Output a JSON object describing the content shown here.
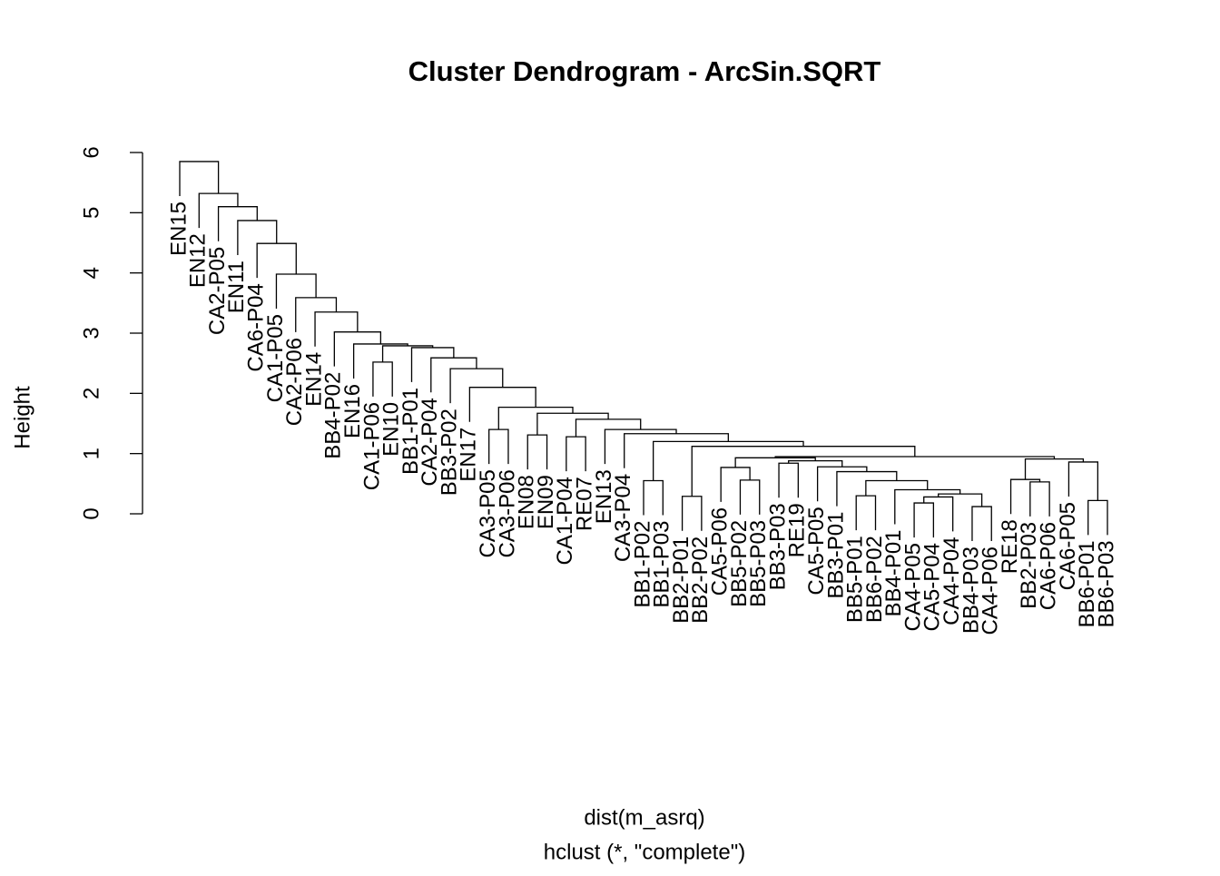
{
  "chart_data": {
    "type": "dendrogram",
    "title": "Cluster Dendrogram - ArcSin.SQRT",
    "x_label": "dist(m_asrq)",
    "subtitle": "hclust (*, \"complete\")",
    "y_label": "Height",
    "labels": [
      "EN15",
      "EN12",
      "CA2-P05",
      "EN11",
      "CA6-P04",
      "CA1-P05",
      "CA2-P06",
      "EN14",
      "BB4-P02",
      "EN16",
      "CA1-P06",
      "EN10",
      "BB1-P01",
      "CA2-P04",
      "BB3-P02",
      "EN17",
      "CA3-P05",
      "CA3-P06",
      "EN08",
      "EN09",
      "CA1-P04",
      "RE07",
      "EN13",
      "CA3-P04",
      "BB1-P02",
      "BB1-P03",
      "BB2-P01",
      "BB2-P02",
      "CA5-P06",
      "BB5-P02",
      "BB5-P03",
      "BB3-P03",
      "RE19",
      "CA5-P05",
      "BB3-P01",
      "BB5-P01",
      "BB6-P02",
      "BB4-P01",
      "CA4-P05",
      "CA5-P04",
      "CA4-P04",
      "BB4-P03",
      "CA4-P06",
      "RE18",
      "BB2-P03",
      "CA6-P06",
      "CA6-P05",
      "BB6-P01",
      "BB6-P03"
    ],
    "merge": [
      [
        -42,
        -43
      ],
      [
        -39,
        -40
      ],
      [
        -48,
        -49
      ],
      [
        2,
        -41
      ],
      [
        -27,
        -28
      ],
      [
        -36,
        -37
      ],
      [
        4,
        1
      ],
      [
        -38,
        7
      ],
      [
        -45,
        -46
      ],
      [
        -25,
        -26
      ],
      [
        6,
        8
      ],
      [
        -30,
        -31
      ],
      [
        -44,
        9
      ],
      [
        -35,
        11
      ],
      [
        -29,
        12
      ],
      [
        -34,
        14
      ],
      [
        -32,
        -33
      ],
      [
        -47,
        3
      ],
      [
        17,
        16
      ],
      [
        13,
        18
      ],
      [
        15,
        19
      ],
      [
        21,
        20
      ],
      [
        5,
        22
      ],
      [
        10,
        23
      ],
      [
        -21,
        -22
      ],
      [
        -19,
        -20
      ],
      [
        -24,
        24
      ],
      [
        -23,
        27
      ],
      [
        -17,
        -18
      ],
      [
        25,
        28
      ],
      [
        26,
        30
      ],
      [
        29,
        31
      ],
      [
        -16,
        32
      ],
      [
        -15,
        33
      ],
      [
        -11,
        -12
      ],
      [
        -14,
        34
      ],
      [
        -13,
        36
      ],
      [
        35,
        37
      ],
      [
        -10,
        38
      ],
      [
        -9,
        39
      ],
      [
        -8,
        40
      ],
      [
        -7,
        41
      ],
      [
        -6,
        42
      ],
      [
        -5,
        43
      ],
      [
        -4,
        44
      ],
      [
        -3,
        45
      ],
      [
        -2,
        46
      ],
      [
        -1,
        47
      ]
    ],
    "height": [
      0.12,
      0.18,
      0.22,
      0.28,
      0.29,
      0.3,
      0.33,
      0.4,
      0.53,
      0.55,
      0.55,
      0.56,
      0.57,
      0.7,
      0.77,
      0.78,
      0.84,
      0.86,
      0.88,
      0.91,
      0.93,
      0.95,
      1.12,
      1.2,
      1.28,
      1.31,
      1.33,
      1.4,
      1.4,
      1.57,
      1.67,
      1.77,
      2.1,
      2.41,
      2.52,
      2.59,
      2.76,
      2.79,
      2.82,
      3.02,
      3.35,
      3.59,
      3.98,
      4.49,
      4.87,
      5.1,
      5.32,
      5.85
    ],
    "ylim": [
      0,
      6
    ],
    "yticks": [
      0,
      1,
      2,
      3,
      4,
      5,
      6
    ]
  }
}
